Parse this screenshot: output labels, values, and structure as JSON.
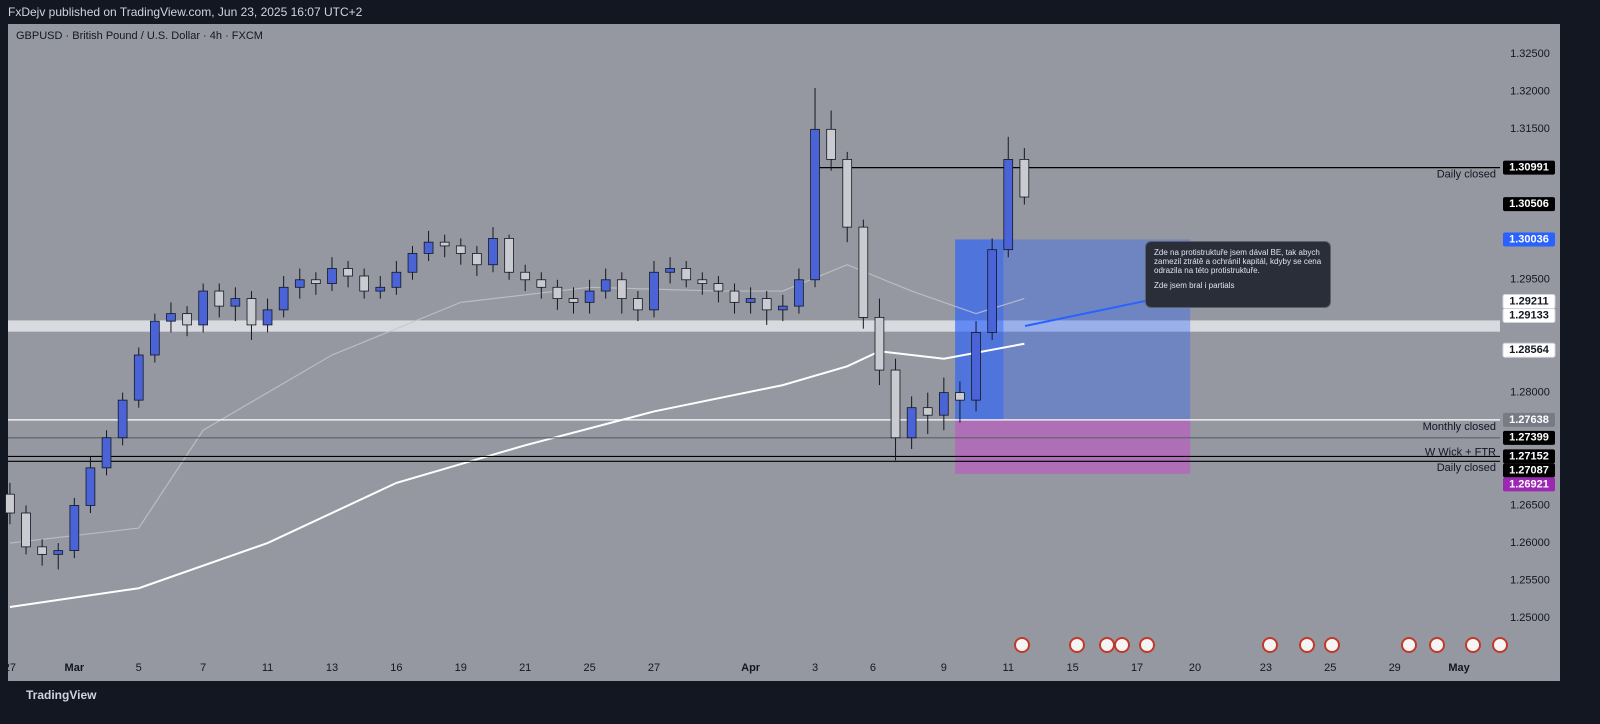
{
  "header": "FxDejv published on TradingView.com, Jun 23, 2025 16:07 UTC+2",
  "footer": "TradingView",
  "chart_data": {
    "type": "candlestick",
    "title": "GBPUSD · British Pound / U.S. Dollar · 4h · FXCM",
    "xlim": [
      -0.06,
      46.27
    ],
    "ylim": [
      1.2418,
      1.329
    ],
    "grid": false,
    "up_color": "#4a63d6",
    "down_color": "#c9cbd1",
    "background": "#9598a1",
    "xticks": [
      {
        "value": 0,
        "label": "27"
      },
      {
        "value": 2,
        "label": "Mar"
      },
      {
        "value": 4,
        "label": "5"
      },
      {
        "value": 6,
        "label": "7"
      },
      {
        "value": 8,
        "label": "11"
      },
      {
        "value": 10,
        "label": "13"
      },
      {
        "value": 12,
        "label": "16"
      },
      {
        "value": 14,
        "label": "19"
      },
      {
        "value": 16,
        "label": "21"
      },
      {
        "value": 18,
        "label": "25"
      },
      {
        "value": 20,
        "label": "27"
      },
      {
        "value": 23,
        "label": "Apr"
      },
      {
        "value": 25,
        "label": "3"
      },
      {
        "value": 26.8,
        "label": "6"
      },
      {
        "value": 29,
        "label": "9"
      },
      {
        "value": 31,
        "label": "11"
      },
      {
        "value": 33,
        "label": "15"
      },
      {
        "value": 35,
        "label": "17"
      },
      {
        "value": 36.8,
        "label": "20"
      },
      {
        "value": 39,
        "label": "23"
      },
      {
        "value": 41,
        "label": "25"
      },
      {
        "value": 43,
        "label": "29"
      },
      {
        "value": 45,
        "label": "May"
      }
    ],
    "yticks": [
      {
        "value": 1.325,
        "label": "1.32500"
      },
      {
        "value": 1.32,
        "label": "1.32000"
      },
      {
        "value": 1.315,
        "label": "1.31500"
      },
      {
        "value": 1.295,
        "label": "1.29500"
      },
      {
        "value": 1.28,
        "label": "1.28000"
      },
      {
        "value": 1.265,
        "label": "1.26500"
      },
      {
        "value": 1.26,
        "label": "1.26000"
      },
      {
        "value": 1.255,
        "label": "1.25500"
      },
      {
        "value": 1.25,
        "label": "1.25000"
      }
    ],
    "x": [
      0,
      0.5,
      1,
      1.5,
      2,
      2.5,
      3,
      3.5,
      4,
      4.5,
      5,
      5.5,
      6,
      6.5,
      7,
      7.5,
      8,
      8.5,
      9,
      9.5,
      10,
      10.5,
      11,
      11.5,
      12,
      12.5,
      13,
      13.5,
      14,
      14.5,
      15,
      15.5,
      16,
      16.5,
      17,
      17.5,
      18,
      18.5,
      19,
      19.5,
      20,
      20.5,
      21,
      21.5,
      22,
      22.5,
      23,
      23.5,
      24,
      24.5,
      25,
      25.5,
      26,
      26.5,
      27,
      27.5,
      28,
      28.5,
      29,
      29.5,
      30,
      30.5,
      31,
      31.5
    ],
    "open": [
      1.2665,
      1.264,
      1.2595,
      1.2585,
      1.259,
      1.265,
      1.27,
      1.274,
      1.279,
      1.285,
      1.2895,
      1.2905,
      1.289,
      1.2935,
      1.2915,
      1.2925,
      1.289,
      1.291,
      1.294,
      1.295,
      1.2945,
      1.2965,
      1.2955,
      1.2935,
      1.294,
      1.296,
      1.2985,
      1.3,
      1.2995,
      1.2985,
      1.297,
      1.3005,
      1.296,
      1.295,
      1.294,
      1.2925,
      1.292,
      1.2935,
      1.295,
      1.2925,
      1.291,
      1.296,
      1.2965,
      1.295,
      1.2945,
      1.2935,
      1.292,
      1.2925,
      1.291,
      1.2915,
      1.295,
      1.315,
      1.311,
      1.302,
      1.29,
      1.283,
      1.274,
      1.278,
      1.277,
      1.28,
      1.279,
      1.288,
      1.299,
      1.311
    ],
    "high": [
      1.268,
      1.265,
      1.2605,
      1.26,
      1.266,
      1.2715,
      1.275,
      1.28,
      1.286,
      1.2905,
      1.292,
      1.2915,
      1.2945,
      1.2945,
      1.294,
      1.2935,
      1.2925,
      1.2955,
      1.2965,
      1.296,
      1.298,
      1.2975,
      1.2965,
      1.2955,
      1.2975,
      1.2995,
      1.3015,
      1.301,
      1.3005,
      1.2995,
      1.302,
      1.301,
      1.297,
      1.296,
      1.295,
      1.294,
      1.295,
      1.2965,
      1.296,
      1.2935,
      1.2975,
      1.298,
      1.2975,
      1.296,
      1.2955,
      1.2945,
      1.294,
      1.2935,
      1.293,
      1.2965,
      1.3205,
      1.3175,
      1.312,
      1.303,
      1.2925,
      1.2845,
      1.2795,
      1.28,
      1.282,
      1.2815,
      1.2895,
      1.3005,
      1.314,
      1.3125
    ],
    "low": [
      1.2625,
      1.2585,
      1.257,
      1.2565,
      1.258,
      1.264,
      1.269,
      1.273,
      1.278,
      1.284,
      1.288,
      1.2875,
      1.288,
      1.29,
      1.2895,
      1.287,
      1.288,
      1.29,
      1.2925,
      1.293,
      1.2935,
      1.294,
      1.2925,
      1.2925,
      1.293,
      1.295,
      1.2975,
      1.298,
      1.297,
      1.2955,
      1.296,
      1.295,
      1.2935,
      1.2925,
      1.291,
      1.2905,
      1.2905,
      1.2925,
      1.2905,
      1.2895,
      1.29,
      1.2945,
      1.294,
      1.293,
      1.292,
      1.2905,
      1.2905,
      1.289,
      1.2895,
      1.2905,
      1.294,
      1.3095,
      1.3,
      1.2885,
      1.281,
      1.271,
      1.2725,
      1.2745,
      1.275,
      1.276,
      1.2775,
      1.287,
      1.298,
      1.305
    ],
    "close": [
      1.264,
      1.2595,
      1.2585,
      1.259,
      1.265,
      1.27,
      1.274,
      1.279,
      1.285,
      1.2895,
      1.2905,
      1.289,
      1.2935,
      1.2915,
      1.2925,
      1.289,
      1.291,
      1.294,
      1.295,
      1.2945,
      1.2965,
      1.2955,
      1.2935,
      1.294,
      1.296,
      1.2985,
      1.3,
      1.2995,
      1.2985,
      1.297,
      1.3005,
      1.296,
      1.295,
      1.294,
      1.2925,
      1.292,
      1.2935,
      1.295,
      1.2925,
      1.291,
      1.296,
      1.2965,
      1.295,
      1.2945,
      1.2935,
      1.292,
      1.2925,
      1.291,
      1.2915,
      1.295,
      1.315,
      1.311,
      1.302,
      1.29,
      1.283,
      1.274,
      1.278,
      1.277,
      1.28,
      1.279,
      1.288,
      1.299,
      1.311,
      1.306
    ],
    "lines": [
      {
        "color": "#ffffff",
        "x": [
          0,
          4,
          8,
          12,
          16,
          20,
          24,
          26,
          27,
          29,
          31.5
        ],
        "values": [
          1.2515,
          1.254,
          1.26,
          1.268,
          1.273,
          1.2775,
          1.281,
          1.2835,
          1.2855,
          1.2845,
          1.2865
        ]
      },
      {
        "color": "#c4c6cc",
        "x": [
          0,
          4,
          6,
          10,
          14,
          18,
          22,
          24,
          26,
          28,
          30,
          31.5
        ],
        "values": [
          1.26,
          1.262,
          1.275,
          1.285,
          1.292,
          1.294,
          1.2935,
          1.2935,
          1.297,
          1.2935,
          1.2905,
          1.2925
        ]
      }
    ],
    "band": {
      "from": 1.2896,
      "to": 1.2881,
      "color": "#e4e5ea"
    },
    "levels": [
      {
        "value": 1.30991,
        "color": "#000000",
        "from": 25.0,
        "label": "Daily closed",
        "side": "below"
      },
      {
        "value": 1.27638,
        "color": "#ffffff",
        "from": -0.06,
        "label": "Monthly closed",
        "side": "below"
      },
      {
        "value": 1.27399,
        "color": "#5d606b",
        "from": -0.06
      },
      {
        "value": 1.27152,
        "color": "#000000",
        "from": -0.06,
        "label": "W Wick + FTR",
        "side": "above"
      },
      {
        "value": 1.27087,
        "color": "#000000",
        "from": -0.06,
        "label": "Daily closed",
        "side": "below"
      }
    ],
    "position": {
      "from": 29.35,
      "to": 36.65,
      "inner_to": 30.85,
      "target": 1.30036,
      "entry": 1.27638,
      "stop": 1.26921
    },
    "price_labels": [
      {
        "value": 1.30991,
        "color": "#000000"
      },
      {
        "value": 1.30506,
        "color": "#000000"
      },
      {
        "value": 1.30036,
        "color": "#2962ff"
      },
      {
        "value": 1.29211,
        "color": "#ffffff"
      },
      {
        "value": 1.29133,
        "color": "#ffffff"
      },
      {
        "value": 1.28564,
        "color": "#ffffff"
      },
      {
        "value": 1.27638,
        "color": "#787b86"
      },
      {
        "value": 1.27399,
        "color": "#000000"
      },
      {
        "value": 1.27152,
        "color": "#000000"
      },
      {
        "value": 1.27087,
        "color": "#000000"
      },
      {
        "value": 1.26921,
        "color": "#9c27b0"
      }
    ],
    "annotations": [
      "Zde na protistruktuře jsem dával BE, tak abych zamezil ztrátě a ochránil kapitál, kdyby se cena odrazila na této protistruktuře.",
      "Zde jsem bral i partials"
    ]
  }
}
